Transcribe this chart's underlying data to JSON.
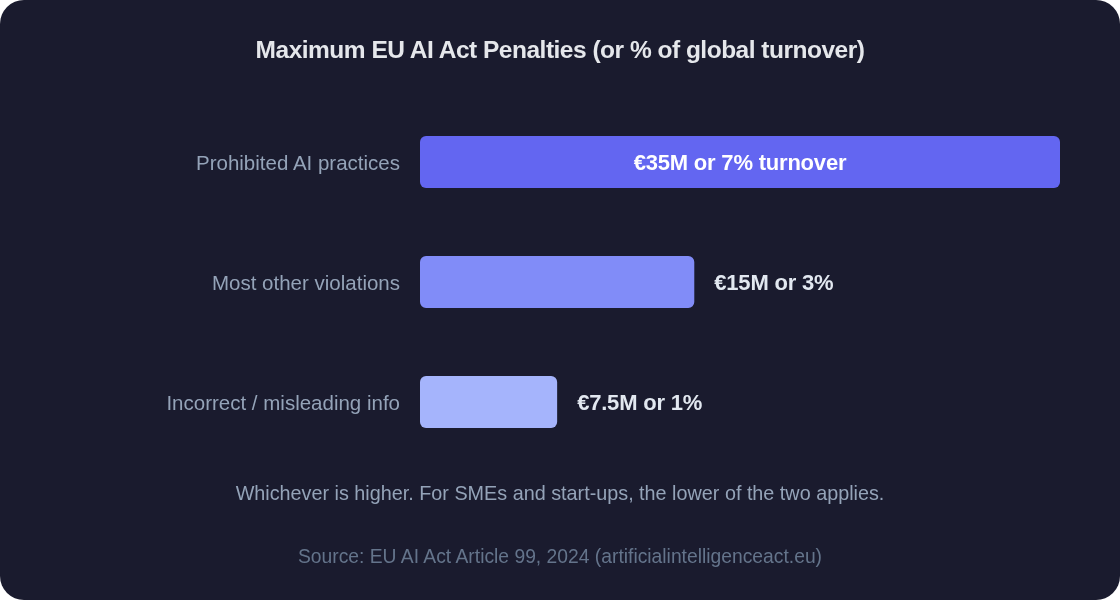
{
  "chart_data": {
    "type": "bar",
    "orientation": "horizontal",
    "title": "Maximum EU AI Act Penalties (or % of global turnover)",
    "categories": [
      "Prohibited AI practices",
      "Most other violations",
      "Incorrect / misleading info"
    ],
    "values": [
      35000000,
      15000000,
      7500000
    ],
    "colors": [
      "#6366f1",
      "#818cf8",
      "#a5b4fc"
    ],
    "value_labels": [
      "€35M or 7% turnover",
      "€15M or 3%",
      "€7.5M or 1%"
    ],
    "annotations": [
      "Whichever is higher. For SMEs and start-ups, the lower of the two applies.",
      "Source: EU AI Act Article 99, 2024 (artificialintelligenceact.eu)"
    ]
  }
}
